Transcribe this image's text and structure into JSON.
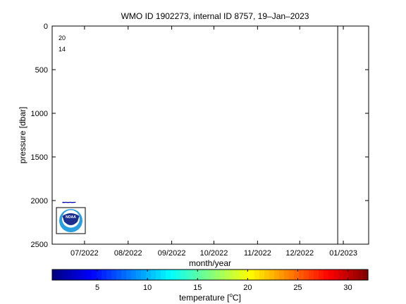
{
  "chart_data": {
    "type": "scatter",
    "title": "WMO ID 1902273, internal ID 8757, 19–Jan–2023",
    "xlabel": "month/year",
    "ylabel": "pressure [dbar]",
    "x_ticks": [
      "07/2022",
      "08/2022",
      "09/2022",
      "10/2022",
      "11/2022",
      "12/2022",
      "01/2023"
    ],
    "y_ticks": [
      "0",
      "500",
      "1000",
      "1500",
      "2000",
      "2500"
    ],
    "ylim": [
      0,
      2500
    ],
    "y_reversed": true,
    "contour_labels": [
      "20",
      "14"
    ],
    "series": [
      {
        "x": [
          "2022-06-16",
          "2022-06-16",
          "2022-06-17",
          "2022-06-18",
          "2022-06-19",
          "2022-06-20",
          "2022-06-21",
          "2022-06-22",
          "2022-06-23",
          "2022-06-24"
        ],
        "pressure": [
          2020,
          2022,
          2021,
          2020,
          2022,
          2021,
          2020,
          2022,
          2021,
          2020
        ],
        "temperature": [
          2.2,
          2.2,
          2.1,
          2.2,
          2.2,
          2.1,
          2.2,
          2.2,
          2.1,
          2.2
        ]
      }
    ],
    "vertical_marker": "2022-12-28",
    "colorbar": {
      "label": "temperature [°C]",
      "ticks": [
        "5",
        "10",
        "15",
        "20",
        "25",
        "30"
      ],
      "range": [
        0.5,
        32
      ],
      "colormap": "jet"
    },
    "logo_text": "NOAA"
  }
}
